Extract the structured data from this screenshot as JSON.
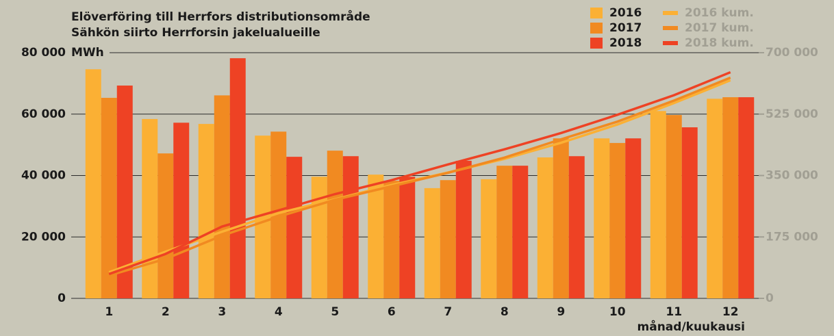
{
  "chart_data": {
    "type": "bar",
    "title": "Elöverföring till Herrfors distributionsområde",
    "subtitle": "Sähkön siirto Herrforsin jakelualueille",
    "y_label": "MWh",
    "x_label": "månad/kuukausi",
    "categories": [
      "1",
      "2",
      "3",
      "4",
      "5",
      "6",
      "7",
      "8",
      "9",
      "10",
      "11",
      "12"
    ],
    "series": [
      {
        "name": "2016",
        "color": "#fbb034",
        "values": [
          74600,
          58400,
          56800,
          53000,
          39600,
          40300,
          35900,
          38800,
          45900,
          52100,
          61000,
          65000
        ]
      },
      {
        "name": "2017",
        "color": "#f18a21",
        "values": [
          65300,
          47200,
          66100,
          54300,
          48100,
          38300,
          38500,
          43200,
          52100,
          50600,
          59700,
          65500
        ]
      },
      {
        "name": "2018",
        "color": "#ee4224",
        "values": [
          69300,
          57200,
          78200,
          46100,
          46300,
          39600,
          44800,
          43200,
          46300,
          52100,
          55700,
          65500
        ]
      },
      {
        "name": "2016 kum.",
        "color": "#fbb034",
        "type": "line",
        "axis": "y2",
        "values": [
          74600,
          133000,
          189800,
          242800,
          282400,
          322700,
          358600,
          397400,
          443300,
          495400,
          556400,
          621400
        ]
      },
      {
        "name": "2017 kum.",
        "color": "#f18a21",
        "type": "line",
        "axis": "y2",
        "values": [
          65300,
          112500,
          178600,
          232900,
          281000,
          319300,
          357800,
          401000,
          453100,
          503700,
          563400,
          628900
        ]
      },
      {
        "name": "2018 kum.",
        "color": "#ee4224",
        "type": "line",
        "axis": "y2",
        "values": [
          69300,
          126500,
          204700,
          250800,
          297100,
          336700,
          381500,
          424700,
          471000,
          523100,
          578800,
          644300
        ]
      }
    ],
    "ylim": [
      0,
      80000
    ],
    "yticks": [
      0,
      {
        "value": 20000,
        "label": "20 000"
      },
      {
        "value": 40000,
        "label": "40 000"
      },
      {
        "value": 60000,
        "label": "60 000"
      },
      {
        "value": 80000,
        "label": "80 000"
      }
    ],
    "y2lim": [
      0,
      700000
    ],
    "y2ticks": [
      0,
      {
        "value": 175000,
        "label": "175 000"
      },
      {
        "value": 350000,
        "label": "350 000"
      },
      {
        "value": 525000,
        "label": "525 000"
      },
      {
        "value": 700000,
        "label": "700 000"
      }
    ],
    "grid": true
  }
}
